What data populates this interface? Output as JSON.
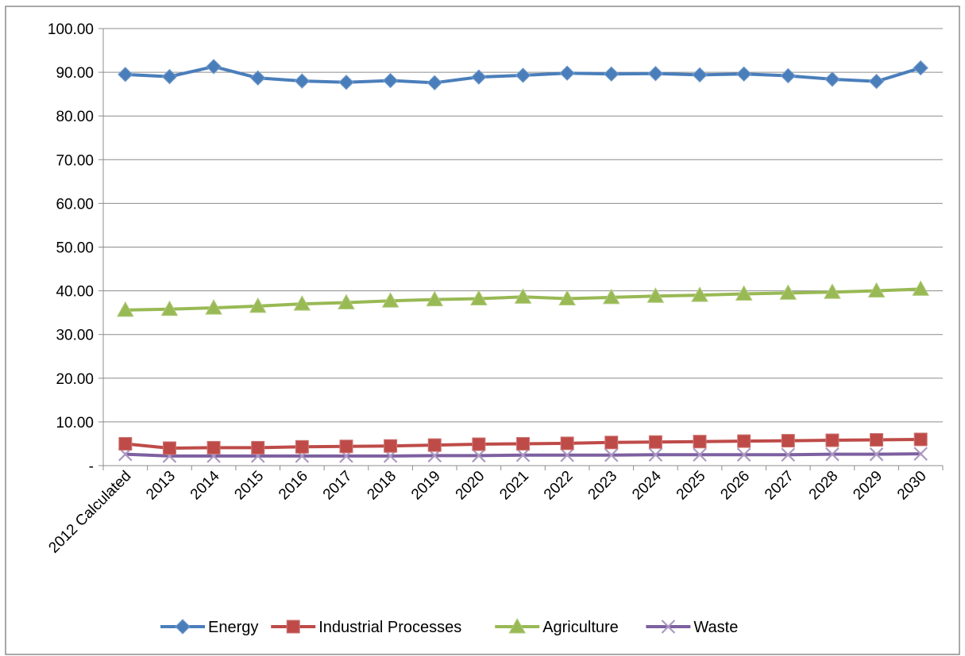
{
  "chart_data": {
    "type": "line",
    "categories": [
      "2012 Calculated",
      "2013",
      "2014",
      "2015",
      "2016",
      "2017",
      "2018",
      "2019",
      "2020",
      "2021",
      "2022",
      "2023",
      "2024",
      "2025",
      "2026",
      "2027",
      "2028",
      "2029",
      "2030"
    ],
    "y_tick_labels": [
      "-",
      "10.00",
      "20.00",
      "30.00",
      "40.00",
      "50.00",
      "60.00",
      "70.00",
      "80.00",
      "90.00",
      "100.00"
    ],
    "ylim": [
      0,
      100
    ],
    "grid": true,
    "legend_position": "bottom",
    "series": [
      {
        "name": "Energy",
        "color": "#4a7ebb",
        "marker": "diamond",
        "values": [
          89.5,
          89.0,
          91.3,
          88.7,
          88.0,
          87.7,
          88.1,
          87.6,
          88.9,
          89.3,
          89.8,
          89.6,
          89.7,
          89.4,
          89.6,
          89.2,
          88.4,
          87.9,
          91.0
        ]
      },
      {
        "name": "Industrial Processes",
        "color": "#be4b48",
        "marker": "square",
        "values": [
          5.0,
          4.0,
          4.1,
          4.1,
          4.3,
          4.4,
          4.5,
          4.7,
          4.9,
          5.0,
          5.1,
          5.3,
          5.4,
          5.5,
          5.6,
          5.7,
          5.8,
          5.9,
          6.0
        ]
      },
      {
        "name": "Agriculture",
        "color": "#98b954",
        "marker": "triangle",
        "values": [
          35.6,
          35.8,
          36.1,
          36.5,
          37.0,
          37.3,
          37.7,
          38.0,
          38.2,
          38.6,
          38.2,
          38.5,
          38.8,
          39.0,
          39.3,
          39.5,
          39.7,
          40.0,
          40.4
        ]
      },
      {
        "name": "Waste",
        "color": "#7d60a0",
        "marker": "x",
        "values": [
          2.6,
          2.2,
          2.2,
          2.2,
          2.2,
          2.2,
          2.2,
          2.3,
          2.3,
          2.4,
          2.4,
          2.4,
          2.5,
          2.5,
          2.5,
          2.5,
          2.6,
          2.6,
          2.7
        ]
      }
    ]
  }
}
